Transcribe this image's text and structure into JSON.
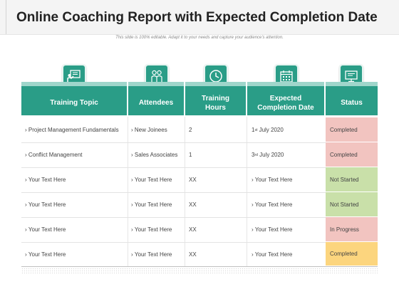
{
  "title": "Online Coaching Report with Expected Completion Date",
  "subtitle": "This slide is 100% editable. Adapt it to your needs and capture your audience's attention.",
  "colors": {
    "header": "#2a9d87",
    "header_strip": "#9fd6cb",
    "status_red": "#f2c4c0",
    "status_green": "#c9e0a9",
    "status_orange": "#fcd57e"
  },
  "columns": [
    {
      "label": "Training Topic",
      "icon": "presentation-icon"
    },
    {
      "label": "Attendees",
      "icon": "people-icon"
    },
    {
      "label": "Training Hours",
      "icon": "clock-icon"
    },
    {
      "label": "Expected Completion Date",
      "icon": "calendar-icon"
    },
    {
      "label": "Status",
      "icon": "monitor-icon"
    }
  ],
  "rows": [
    {
      "topic": "Project Management Fundamentals",
      "attendees": "New Joinees",
      "hours": "2",
      "date_day": "1",
      "date_suffix": "st",
      "date_rest": " July 2020",
      "status": "Completed",
      "status_color": "#f2c4c0"
    },
    {
      "topic": "Conflict Management",
      "attendees": "Sales Associates",
      "hours": "1",
      "date_day": "3",
      "date_suffix": "rd",
      "date_rest": " July 2020",
      "status": "Completed",
      "status_color": "#f2c4c0"
    },
    {
      "topic": "Your Text Here",
      "attendees": "Your Text Here",
      "hours": "XX",
      "date": "Your Text Here",
      "status": "Not Started",
      "status_color": "#c9e0a9"
    },
    {
      "topic": "Your Text Here",
      "attendees": "Your Text Here",
      "hours": "XX",
      "date": "Your Text Here",
      "status": "Not Started",
      "status_color": "#c9e0a9"
    },
    {
      "topic": "Your Text Here",
      "attendees": "Your Text Here",
      "hours": "XX",
      "date": "Your Text Here",
      "status": "In Progress",
      "status_color": "#f2c4c0"
    },
    {
      "topic": "Your Text Here",
      "attendees": "Your Text Here",
      "hours": "XX",
      "date": "Your Text Here",
      "status": "Completed",
      "status_color": "#fcd57e"
    }
  ]
}
